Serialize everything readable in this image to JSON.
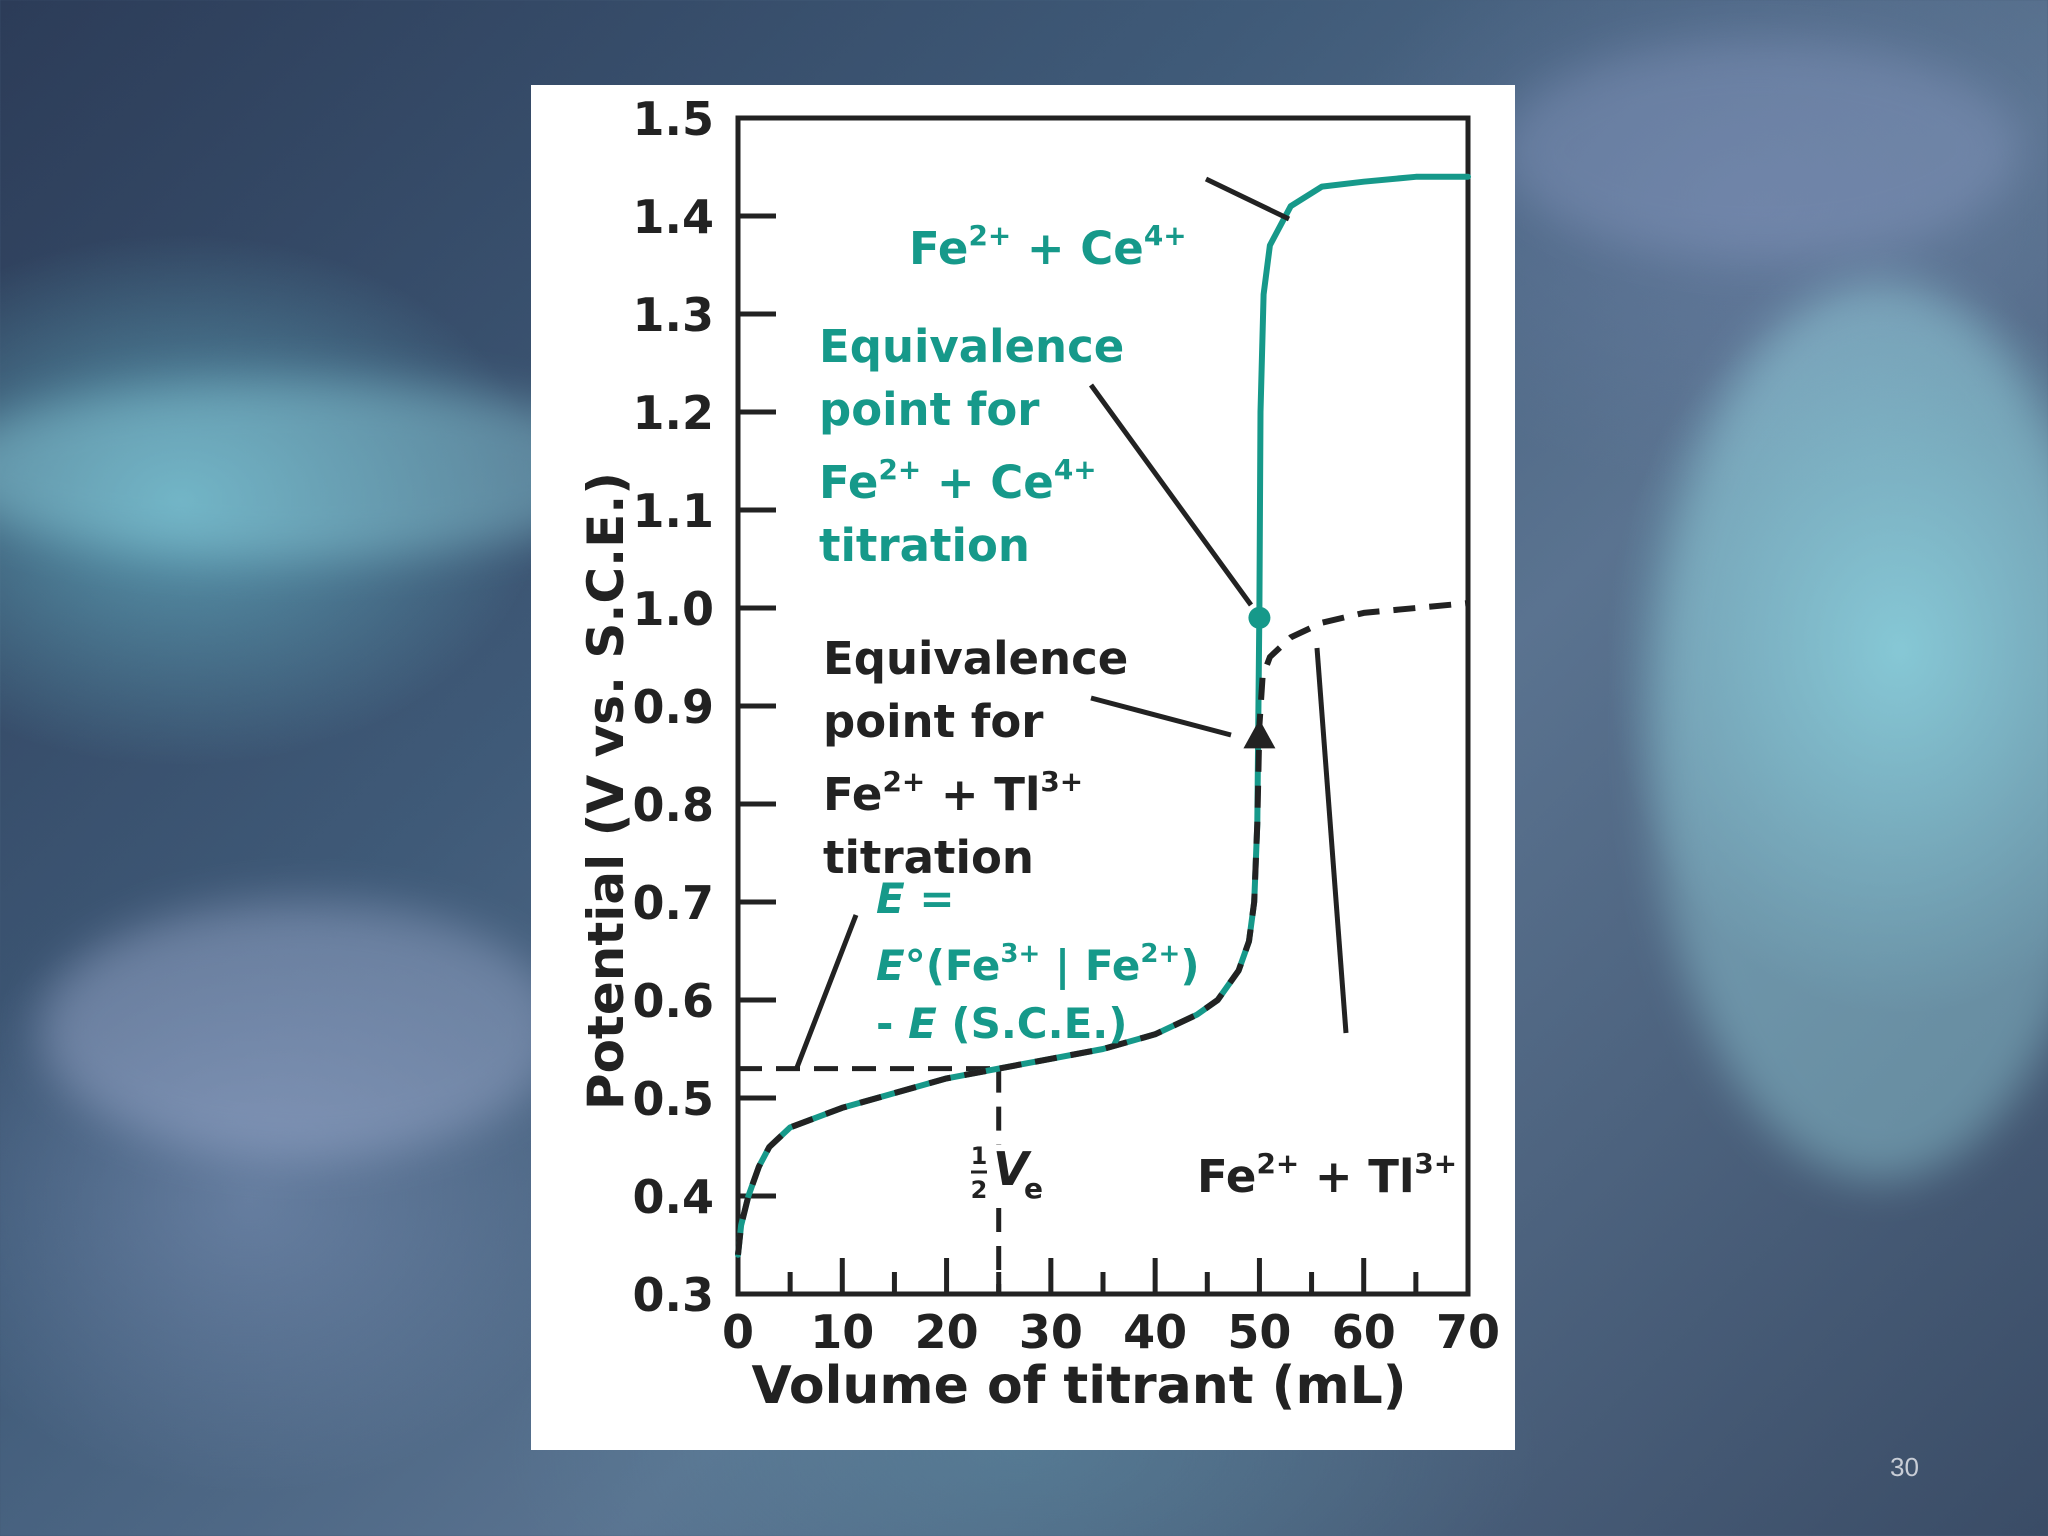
{
  "slide": {
    "page_number": "30"
  },
  "chart_data": {
    "type": "line",
    "title": "",
    "xlabel": "Volume of titrant (mL)",
    "ylabel": "Potential (V vs. S.C.E.)",
    "xlim": [
      0,
      70
    ],
    "ylim": [
      0.3,
      1.5
    ],
    "x_ticks": [
      "0",
      "10",
      "20",
      "30",
      "40",
      "50",
      "60",
      "70"
    ],
    "y_ticks": [
      "0.3",
      "0.4",
      "0.5",
      "0.6",
      "0.7",
      "0.8",
      "0.9",
      "1.0",
      "1.1",
      "1.2",
      "1.3",
      "1.4",
      "1.5"
    ],
    "grid": false,
    "legend": "none",
    "series": [
      {
        "name": "Fe2+ + Ce4+",
        "color": "#16998a",
        "style": "solid",
        "points": [
          [
            0,
            0.34
          ],
          [
            0.3,
            0.37
          ],
          [
            1,
            0.4
          ],
          [
            2,
            0.43
          ],
          [
            3,
            0.45
          ],
          [
            5,
            0.47
          ],
          [
            10,
            0.49
          ],
          [
            15,
            0.505
          ],
          [
            20,
            0.52
          ],
          [
            25,
            0.53
          ],
          [
            30,
            0.54
          ],
          [
            35,
            0.55
          ],
          [
            40,
            0.565
          ],
          [
            44,
            0.585
          ],
          [
            46,
            0.6
          ],
          [
            48,
            0.63
          ],
          [
            49,
            0.66
          ],
          [
            49.5,
            0.7
          ],
          [
            49.8,
            0.78
          ],
          [
            50,
            1.0
          ],
          [
            50.1,
            1.2
          ],
          [
            50.4,
            1.32
          ],
          [
            51,
            1.37
          ],
          [
            53,
            1.41
          ],
          [
            56,
            1.43
          ],
          [
            60,
            1.435
          ],
          [
            65,
            1.44
          ],
          [
            70,
            1.44
          ]
        ]
      },
      {
        "name": "Fe2+ + Tl3+",
        "color": "#222222",
        "style": "dashed",
        "points": [
          [
            0,
            0.34
          ],
          [
            0.3,
            0.37
          ],
          [
            1,
            0.4
          ],
          [
            2,
            0.43
          ],
          [
            3,
            0.45
          ],
          [
            5,
            0.47
          ],
          [
            10,
            0.49
          ],
          [
            15,
            0.505
          ],
          [
            20,
            0.52
          ],
          [
            25,
            0.53
          ],
          [
            30,
            0.54
          ],
          [
            35,
            0.55
          ],
          [
            40,
            0.565
          ],
          [
            44,
            0.585
          ],
          [
            46,
            0.6
          ],
          [
            48,
            0.63
          ],
          [
            49,
            0.66
          ],
          [
            49.5,
            0.7
          ],
          [
            49.8,
            0.78
          ],
          [
            50,
            0.88
          ],
          [
            50.3,
            0.93
          ],
          [
            51,
            0.95
          ],
          [
            53,
            0.97
          ],
          [
            56,
            0.985
          ],
          [
            60,
            0.995
          ],
          [
            65,
            1.0
          ],
          [
            70,
            1.005
          ]
        ]
      }
    ],
    "points_marked": [
      {
        "name": "Equivalence point Fe2+ + Ce4+",
        "x": 50,
        "y": 0.99,
        "marker": "circle",
        "color": "#16998a"
      },
      {
        "name": "Equivalence point Fe2+ + Tl3+",
        "x": 50,
        "y": 0.87,
        "marker": "triangle",
        "color": "#222222"
      }
    ],
    "reference_lines": {
      "half_equivalence_volume": 25,
      "formal_potential": 0.53
    },
    "half_ve_label": {
      "fraction": "1",
      "denominator": "2",
      "symbol": "V",
      "subscript": "e"
    },
    "annotations": {
      "ce_curve_label": {
        "base1": "Fe",
        "sup1": "2+",
        "plus": " + ",
        "base2": "Ce",
        "sup2": "4+"
      },
      "ce_equivalence": {
        "line1": "Equivalence",
        "line2": "point for",
        "line3_base1": "Fe",
        "line3_sup1": "2+",
        "line3_plus": " + ",
        "line3_base2": "Ce",
        "line3_sup2": "4+",
        "line4": "titration"
      },
      "tl_equivalence": {
        "line1": "Equivalence",
        "line2": "point for",
        "line3_base1": "Fe",
        "line3_sup1": "2+",
        "line3_plus": " + ",
        "line3_base2": "Tl",
        "line3_sup2": "3+",
        "line4": "titration"
      },
      "formal_potential_label": {
        "line1_e": "E",
        "line1_rest": " =",
        "line2_e": "E",
        "line2_a": "°(Fe",
        "line2_sup1": "3+",
        "line2_b": " | Fe",
        "line2_sup2": "2+",
        "line2_c": ")",
        "line3_a": "- ",
        "line3_e": "E",
        "line3_b": " (S.C.E.)"
      },
      "tl_curve_label": {
        "base1": "Fe",
        "sup1": "2+",
        "plus": " + ",
        "base2": "Tl",
        "sup2": "3+"
      }
    }
  }
}
